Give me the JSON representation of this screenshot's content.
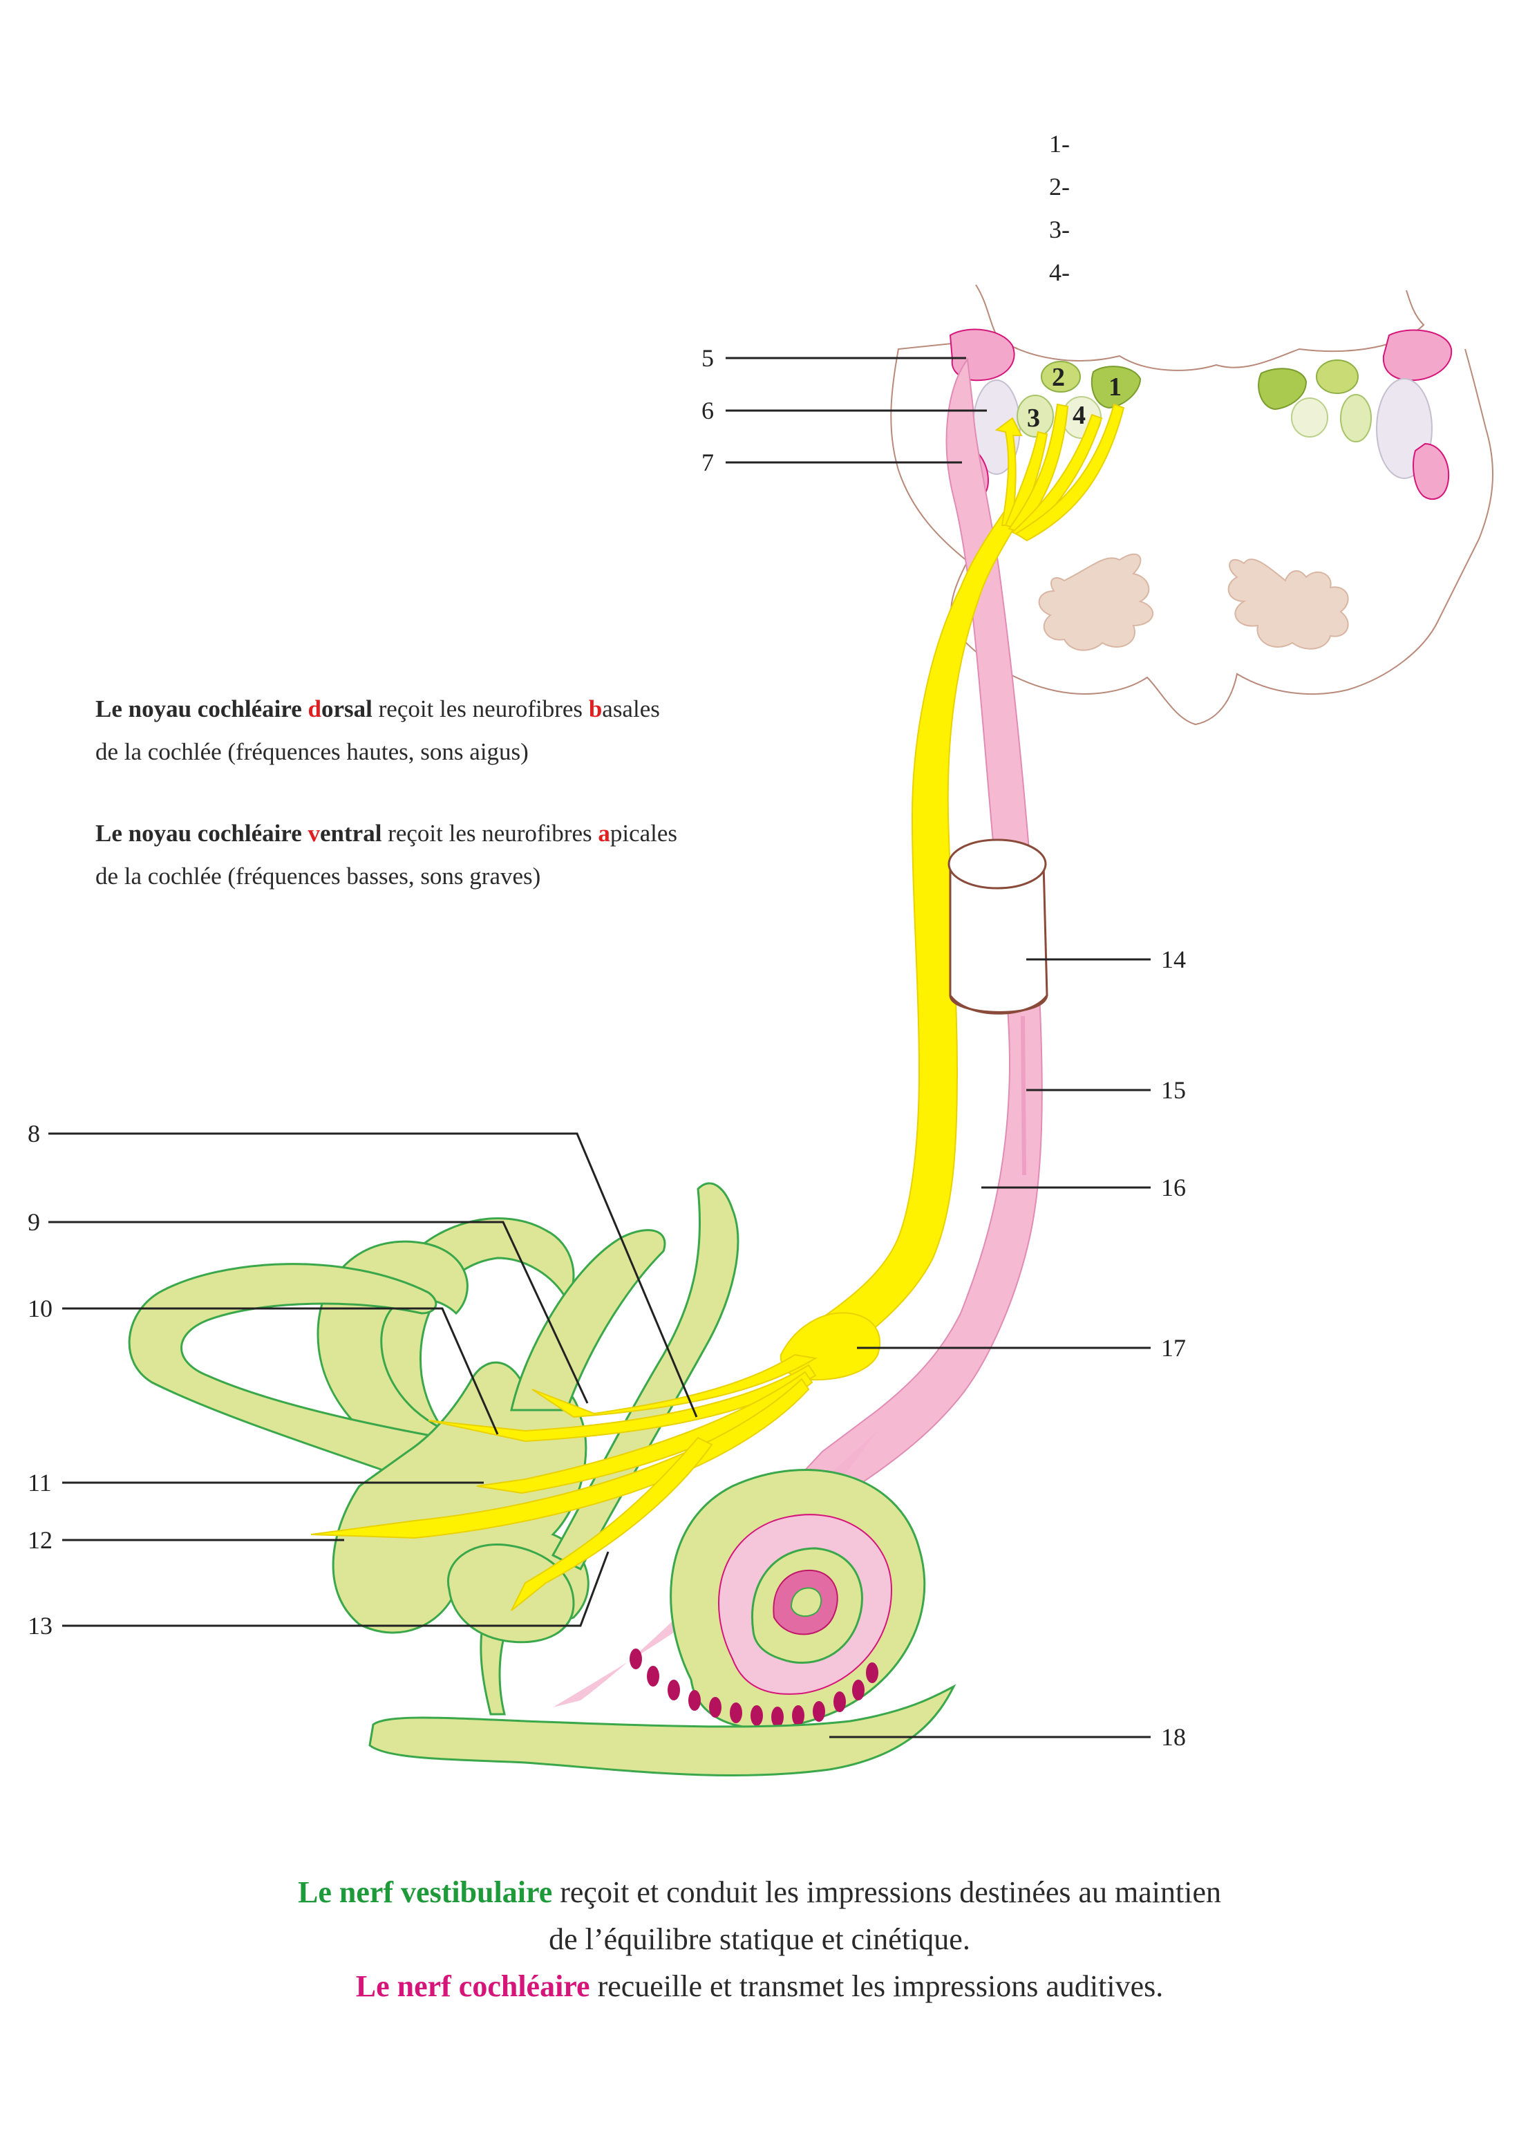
{
  "legend_list": [
    "1-",
    "2-",
    "3-",
    "4-"
  ],
  "nuclei_numbers": [
    "1",
    "2",
    "3",
    "4"
  ],
  "callouts": {
    "n5": "5",
    "n6": "6",
    "n7": "7",
    "n8": "8",
    "n9": "9",
    "n10": "10",
    "n11": "11",
    "n12": "12",
    "n13": "13",
    "n14": "14",
    "n15": "15",
    "n16": "16",
    "n17": "17",
    "n18": "18"
  },
  "dorsal_text": {
    "p1": "Le noyau cochléaire ",
    "p2": "d",
    "p3": "orsal",
    "p4": " reçoit les neurofibres ",
    "p5": "b",
    "p6": "asales",
    "line2": "de la cochlée (fréquences hautes, sons aigus)"
  },
  "ventral_text": {
    "p1": "Le noyau cochléaire ",
    "p2": "v",
    "p3": "entral",
    "p4": " reçoit les neurofibres ",
    "p5": "a",
    "p6": "picales",
    "line2": "de la cochlée (fréquences basses, sons graves)"
  },
  "footer": {
    "vestib_name": "Le nerf vestibulaire",
    "vestib_rest": " reçoit et conduit les impressions destinées au maintien",
    "vestib_line2": "de l’équilibre statique et cinétique.",
    "coch_name": "Le nerf cochléaire",
    "coch_rest": " recueille et transmet les impressions auditives."
  },
  "colors": {
    "nerve": "#fff200",
    "labyrinth": "#dde597",
    "labyrinth_outline": "#3aa84a",
    "pink": "#f5b9d2",
    "magenta": "#d6157b",
    "brainstem_outline": "#b98a7a"
  }
}
